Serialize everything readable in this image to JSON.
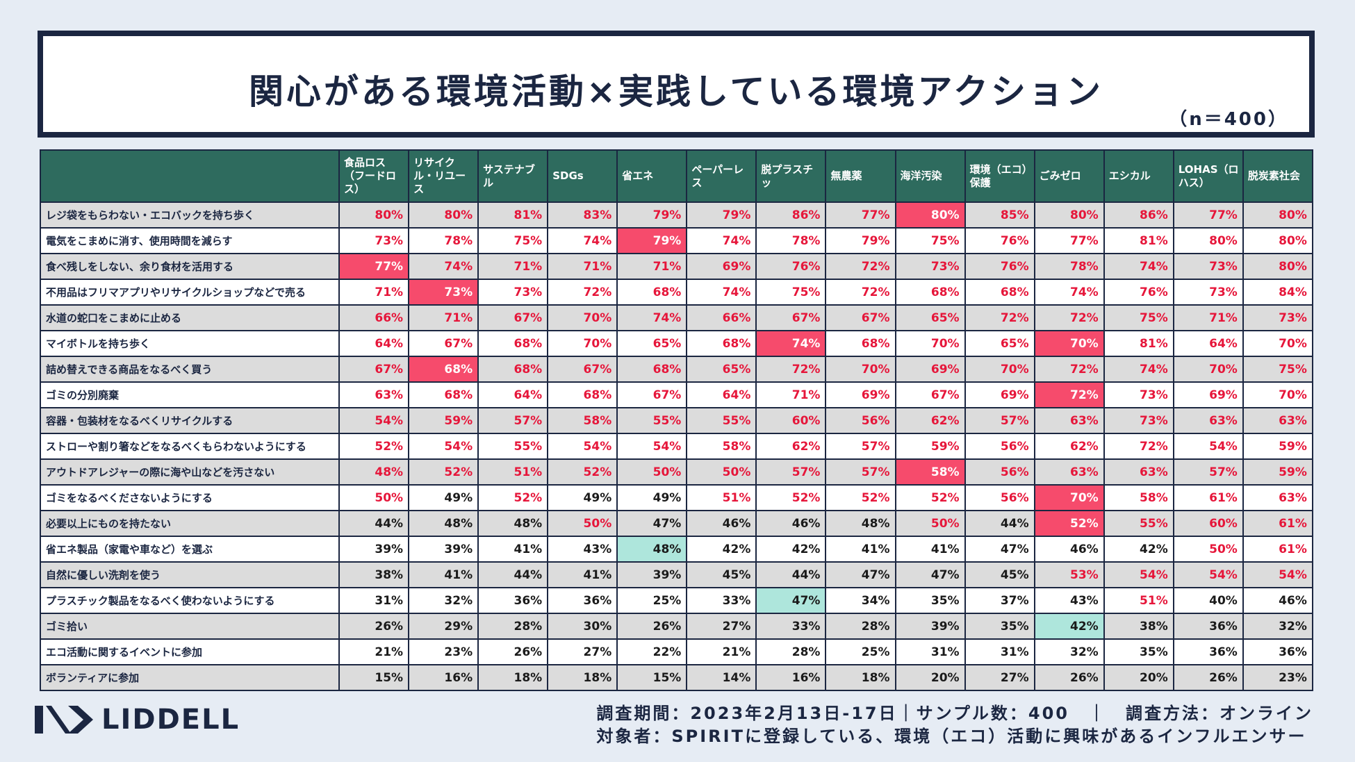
{
  "header": {
    "title": "関心がある環境活動×実践している環境アクション",
    "sample_note": "（n＝400）"
  },
  "chart_data": {
    "type": "table",
    "title": "関心がある環境活動×実践している環境アクション",
    "columns": [
      "食品ロス（フードロス）",
      "リサイクル・リユース",
      "サステナブル",
      "SDGs",
      "省エネ",
      "ペーパーレス",
      "脱プラスチッ",
      "無農薬",
      "海洋汚染",
      "環境（エコ）保護",
      "ごみゼロ",
      "エシカル",
      "LOHAS（ロハス）",
      "脱炭素社会"
    ],
    "rows": [
      {
        "label": "レジ袋をもらわない・エコバックを持ち歩く",
        "values": [
          "80%",
          "80%",
          "81%",
          "83%",
          "79%",
          "79%",
          "86%",
          "77%",
          "80%",
          "85%",
          "80%",
          "86%",
          "77%",
          "80%"
        ],
        "styles": [
          "r",
          "r",
          "r",
          "r",
          "r",
          "r",
          "r",
          "r",
          "R",
          "r",
          "r",
          "r",
          "r",
          "r"
        ]
      },
      {
        "label": "電気をこまめに消す、使用時間を減らす",
        "values": [
          "73%",
          "78%",
          "75%",
          "74%",
          "79%",
          "74%",
          "78%",
          "79%",
          "75%",
          "76%",
          "77%",
          "81%",
          "80%",
          "80%"
        ],
        "styles": [
          "r",
          "r",
          "r",
          "r",
          "R",
          "r",
          "r",
          "r",
          "r",
          "r",
          "r",
          "r",
          "r",
          "r"
        ]
      },
      {
        "label": "食べ残しをしない、余り食材を活用する",
        "values": [
          "77%",
          "74%",
          "71%",
          "71%",
          "71%",
          "69%",
          "76%",
          "72%",
          "73%",
          "76%",
          "78%",
          "74%",
          "73%",
          "80%"
        ],
        "styles": [
          "R",
          "r",
          "r",
          "r",
          "r",
          "r",
          "r",
          "r",
          "r",
          "r",
          "r",
          "r",
          "r",
          "r"
        ]
      },
      {
        "label": "不用品はフリマアプリやリサイクルショップなどで売る",
        "values": [
          "71%",
          "73%",
          "73%",
          "72%",
          "68%",
          "74%",
          "75%",
          "72%",
          "68%",
          "68%",
          "74%",
          "76%",
          "73%",
          "84%"
        ],
        "styles": [
          "r",
          "R",
          "r",
          "r",
          "r",
          "r",
          "r",
          "r",
          "r",
          "r",
          "r",
          "r",
          "r",
          "r"
        ]
      },
      {
        "label": "水道の蛇口をこまめに止める",
        "values": [
          "66%",
          "71%",
          "67%",
          "70%",
          "74%",
          "66%",
          "67%",
          "67%",
          "65%",
          "72%",
          "72%",
          "75%",
          "71%",
          "73%"
        ],
        "styles": [
          "r",
          "r",
          "r",
          "r",
          "r",
          "r",
          "r",
          "r",
          "r",
          "r",
          "r",
          "r",
          "r",
          "r"
        ]
      },
      {
        "label": "マイボトルを持ち歩く",
        "values": [
          "64%",
          "67%",
          "68%",
          "70%",
          "65%",
          "68%",
          "74%",
          "68%",
          "70%",
          "65%",
          "70%",
          "81%",
          "64%",
          "70%"
        ],
        "styles": [
          "r",
          "r",
          "r",
          "r",
          "r",
          "r",
          "R",
          "r",
          "r",
          "r",
          "R",
          "r",
          "r",
          "r"
        ]
      },
      {
        "label": "詰め替えできる商品をなるべく買う",
        "values": [
          "67%",
          "68%",
          "68%",
          "67%",
          "68%",
          "65%",
          "72%",
          "70%",
          "69%",
          "70%",
          "72%",
          "74%",
          "70%",
          "75%"
        ],
        "styles": [
          "r",
          "R",
          "r",
          "r",
          "r",
          "r",
          "r",
          "r",
          "r",
          "r",
          "r",
          "r",
          "r",
          "r"
        ]
      },
      {
        "label": "ゴミの分別廃棄",
        "values": [
          "63%",
          "68%",
          "64%",
          "68%",
          "67%",
          "64%",
          "71%",
          "69%",
          "67%",
          "69%",
          "72%",
          "73%",
          "69%",
          "70%"
        ],
        "styles": [
          "r",
          "r",
          "r",
          "r",
          "r",
          "r",
          "r",
          "r",
          "r",
          "r",
          "R",
          "r",
          "r",
          "r"
        ]
      },
      {
        "label": "容器・包装材をなるべくリサイクルする",
        "values": [
          "54%",
          "59%",
          "57%",
          "58%",
          "55%",
          "55%",
          "60%",
          "56%",
          "62%",
          "57%",
          "63%",
          "73%",
          "63%",
          "63%"
        ],
        "styles": [
          "r",
          "r",
          "r",
          "r",
          "r",
          "r",
          "r",
          "r",
          "r",
          "r",
          "r",
          "r",
          "r",
          "r"
        ]
      },
      {
        "label": "ストローや割り箸などをなるべくもらわないようにする",
        "values": [
          "52%",
          "54%",
          "55%",
          "54%",
          "54%",
          "58%",
          "62%",
          "57%",
          "59%",
          "56%",
          "62%",
          "72%",
          "54%",
          "59%"
        ],
        "styles": [
          "r",
          "r",
          "r",
          "r",
          "r",
          "r",
          "r",
          "r",
          "r",
          "r",
          "r",
          "r",
          "r",
          "r"
        ]
      },
      {
        "label": "アウトドアレジャーの際に海や山などを汚さない",
        "values": [
          "48%",
          "52%",
          "51%",
          "52%",
          "50%",
          "50%",
          "57%",
          "57%",
          "58%",
          "56%",
          "63%",
          "63%",
          "57%",
          "59%"
        ],
        "styles": [
          "r",
          "r",
          "r",
          "r",
          "r",
          "r",
          "r",
          "r",
          "R",
          "r",
          "r",
          "r",
          "r",
          "r"
        ]
      },
      {
        "label": "ゴミをなるべくださないようにする",
        "values": [
          "50%",
          "49%",
          "52%",
          "49%",
          "49%",
          "51%",
          "52%",
          "52%",
          "52%",
          "56%",
          "70%",
          "58%",
          "61%",
          "63%"
        ],
        "styles": [
          "r",
          "b",
          "r",
          "b",
          "b",
          "r",
          "r",
          "r",
          "r",
          "r",
          "R",
          "r",
          "r",
          "r"
        ]
      },
      {
        "label": "必要以上にものを持たない",
        "values": [
          "44%",
          "48%",
          "48%",
          "50%",
          "47%",
          "46%",
          "46%",
          "48%",
          "50%",
          "44%",
          "52%",
          "55%",
          "60%",
          "61%"
        ],
        "styles": [
          "b",
          "b",
          "b",
          "r",
          "b",
          "b",
          "b",
          "b",
          "r",
          "b",
          "R",
          "r",
          "r",
          "r"
        ]
      },
      {
        "label": "省エネ製品（家電や車など）を選ぶ",
        "values": [
          "39%",
          "39%",
          "41%",
          "43%",
          "48%",
          "42%",
          "42%",
          "41%",
          "41%",
          "47%",
          "46%",
          "42%",
          "50%",
          "61%"
        ],
        "styles": [
          "b",
          "b",
          "b",
          "b",
          "T",
          "b",
          "b",
          "b",
          "b",
          "b",
          "b",
          "b",
          "r",
          "r"
        ]
      },
      {
        "label": "自然に優しい洗剤を使う",
        "values": [
          "38%",
          "41%",
          "44%",
          "41%",
          "39%",
          "45%",
          "44%",
          "47%",
          "47%",
          "45%",
          "53%",
          "54%",
          "54%",
          "54%"
        ],
        "styles": [
          "b",
          "b",
          "b",
          "b",
          "b",
          "b",
          "b",
          "b",
          "b",
          "b",
          "r",
          "r",
          "r",
          "r"
        ]
      },
      {
        "label": "プラスチック製品をなるべく使わないようにする",
        "values": [
          "31%",
          "32%",
          "36%",
          "36%",
          "25%",
          "33%",
          "47%",
          "34%",
          "35%",
          "37%",
          "43%",
          "51%",
          "40%",
          "46%"
        ],
        "styles": [
          "b",
          "b",
          "b",
          "b",
          "b",
          "b",
          "T",
          "b",
          "b",
          "b",
          "b",
          "r",
          "b",
          "b"
        ]
      },
      {
        "label": "ゴミ拾い",
        "values": [
          "26%",
          "29%",
          "28%",
          "30%",
          "26%",
          "27%",
          "33%",
          "28%",
          "39%",
          "35%",
          "42%",
          "38%",
          "36%",
          "32%"
        ],
        "styles": [
          "b",
          "b",
          "b",
          "b",
          "b",
          "b",
          "b",
          "b",
          "b",
          "b",
          "T",
          "b",
          "b",
          "b"
        ]
      },
      {
        "label": "エコ活動に関するイベントに参加",
        "values": [
          "21%",
          "23%",
          "26%",
          "27%",
          "22%",
          "21%",
          "28%",
          "25%",
          "31%",
          "31%",
          "32%",
          "35%",
          "36%",
          "36%"
        ],
        "styles": [
          "b",
          "b",
          "b",
          "b",
          "b",
          "b",
          "b",
          "b",
          "b",
          "b",
          "b",
          "b",
          "b",
          "b"
        ]
      },
      {
        "label": "ボランティアに参加",
        "values": [
          "15%",
          "16%",
          "18%",
          "18%",
          "15%",
          "14%",
          "16%",
          "18%",
          "20%",
          "27%",
          "26%",
          "20%",
          "26%",
          "23%"
        ],
        "styles": [
          "b",
          "b",
          "b",
          "b",
          "b",
          "b",
          "b",
          "b",
          "b",
          "b",
          "b",
          "b",
          "b",
          "b"
        ]
      }
    ],
    "colors": {
      "header_bg": "#2e6b5e",
      "red_text": "#e6163a",
      "highlight_red": "#f64b6c",
      "highlight_teal": "#aee6dc"
    }
  },
  "footer": {
    "logo_text": "LIDDELL",
    "line1": "調査期間：2023年2月13日-17日｜サンプル数：400　｜　調査方法：オンライン",
    "line2": "対象者：SPIRITに登録している、環境（エコ）活動に興味があるインフルエンサー"
  }
}
